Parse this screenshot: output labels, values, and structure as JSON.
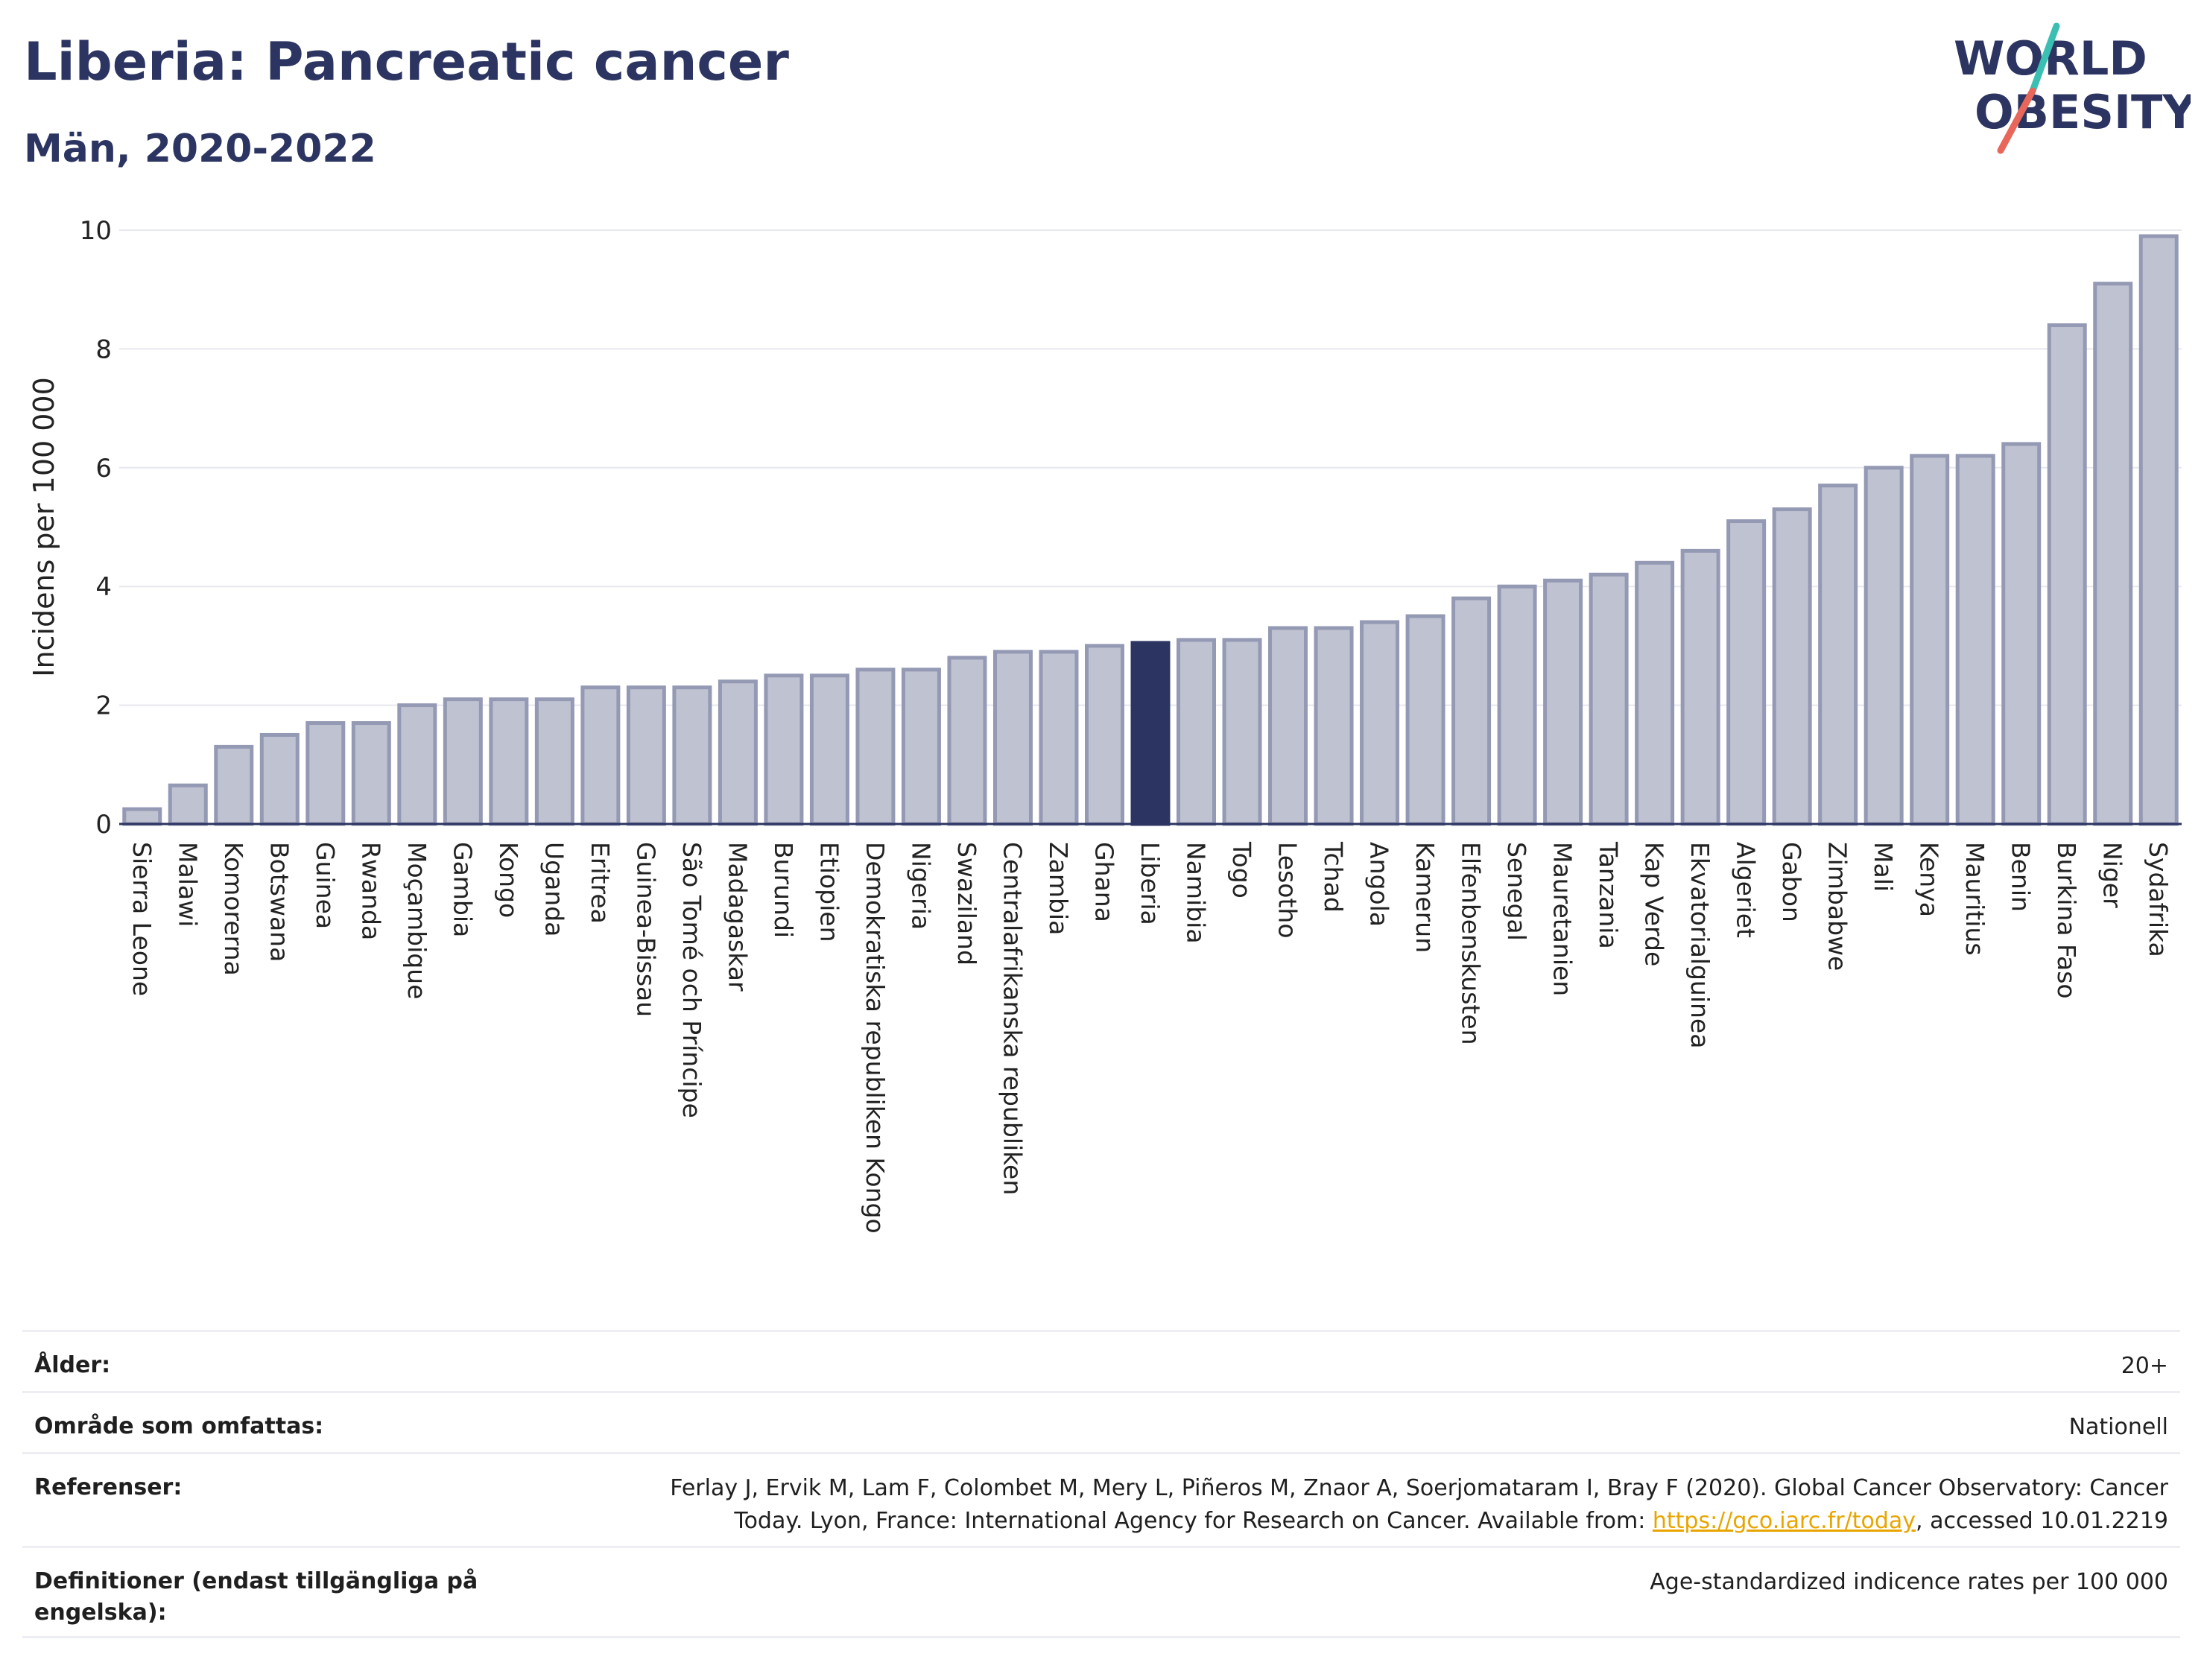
{
  "header": {
    "title": "Liberia: Pancreatic cancer",
    "subtitle": "Män, 2020-2022"
  },
  "logo": {
    "line1": "WORLD",
    "line2": "OBESITY",
    "colors": {
      "text": "#2c3561",
      "slash_teal": "#3bbfb2",
      "slash_coral": "#e8665a"
    }
  },
  "chart_data": {
    "type": "bar",
    "ylabel": "Incidens per 100 000",
    "xlabel": "",
    "ylim": [
      0,
      10
    ],
    "yticks": [
      0,
      2,
      4,
      6,
      8,
      10
    ],
    "highlight": "Liberia",
    "colors": {
      "bar": "#bfc2d1",
      "bar_edge": "#9499b4",
      "highlight": "#2c3561",
      "grid": "#e6e8ee"
    },
    "categories": [
      "Sierra Leone",
      "Malawi",
      "Komorerna",
      "Botswana",
      "Guinea",
      "Rwanda",
      "Moçambique",
      "Gambia",
      "Kongo",
      "Uganda",
      "Eritrea",
      "Guinea-Bissau",
      "São Tomé och Príncipe",
      "Madagaskar",
      "Burundi",
      "Etiopien",
      "Demokratiska republiken Kongo",
      "Nigeria",
      "Swaziland",
      "Centralafrikanska republiken",
      "Zambia",
      "Ghana",
      "Liberia",
      "Namibia",
      "Togo",
      "Lesotho",
      "Tchad",
      "Angola",
      "Kamerun",
      "Elfenbenskusten",
      "Senegal",
      "Mauretanien",
      "Tanzania",
      "Kap Verde",
      "Ekvatorialguinea",
      "Algeriet",
      "Gabon",
      "Zimbabwe",
      "Mali",
      "Kenya",
      "Mauritius",
      "Benin",
      "Burkina Faso",
      "Niger",
      "Sydafrika"
    ],
    "values": [
      0.25,
      0.65,
      1.3,
      1.5,
      1.7,
      1.7,
      2.0,
      2.1,
      2.1,
      2.1,
      2.3,
      2.3,
      2.3,
      2.4,
      2.5,
      2.5,
      2.6,
      2.6,
      2.8,
      2.9,
      2.9,
      3.0,
      3.05,
      3.1,
      3.1,
      3.3,
      3.3,
      3.4,
      3.5,
      3.8,
      4.0,
      4.1,
      4.2,
      4.4,
      4.6,
      5.1,
      5.3,
      5.7,
      6.0,
      6.2,
      6.2,
      6.4,
      8.4,
      9.1,
      9.9
    ]
  },
  "info": {
    "age_label": "Ålder:",
    "age_value": "20+",
    "area_label": "Område som omfattas:",
    "area_value": "Nationell",
    "refs_label": "Referenser:",
    "refs_text_1": "Ferlay J, Ervik M, Lam F, Colombet M, Mery L, Piñeros M, Znaor A, Soerjomataram I, Bray F (2020). Global Cancer Observatory: Cancer",
    "refs_text_2": "Today. Lyon, France: International Agency for Research on Cancer. Available from: ",
    "refs_link": "https://gco.iarc.fr/today",
    "refs_text_3": ", accessed 10.01.2219",
    "defs_label": "Definitioner (endast tillgängliga på engelska):",
    "defs_value": "Age-standardized indicence rates per 100 000"
  }
}
